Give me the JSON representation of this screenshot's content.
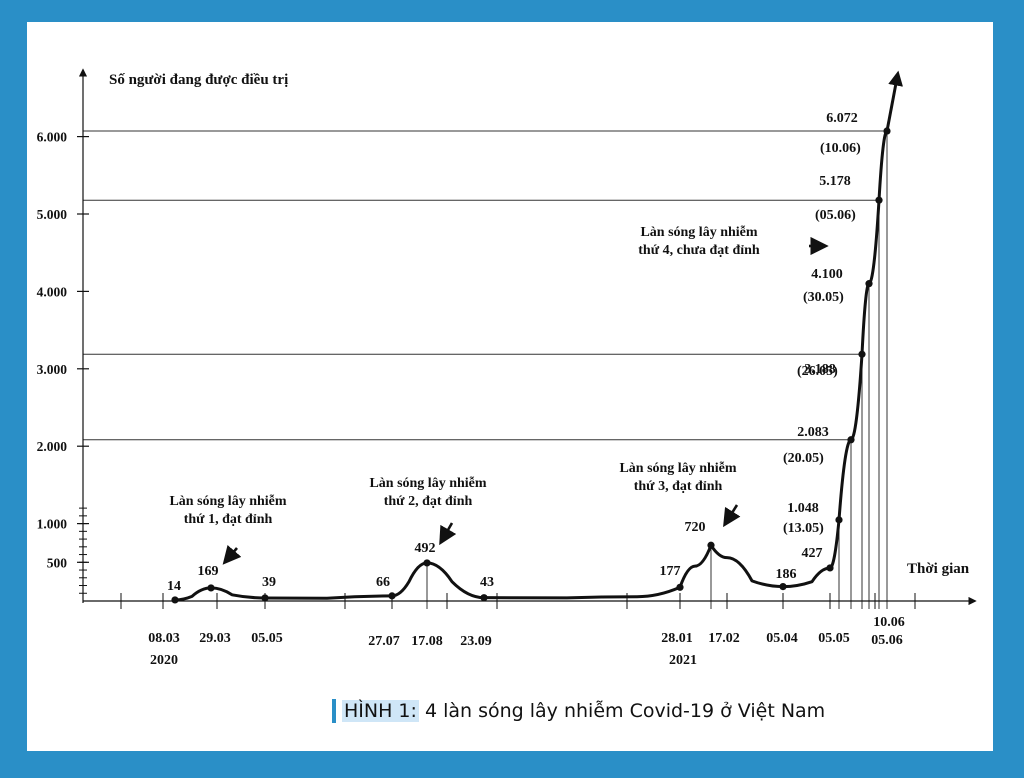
{
  "chart_data": {
    "type": "line",
    "title": "",
    "xlabel": "Thời gian",
    "ylabel": "Số người đang được điều trị",
    "yticks": [
      "500",
      "1.000",
      "2.000",
      "3.000",
      "4.000",
      "5.000",
      "6.000"
    ],
    "ytick_values": [
      500,
      1000,
      2000,
      3000,
      4000,
      5000,
      6000
    ],
    "years": [
      {
        "label": "2020",
        "under": "08.03"
      },
      {
        "label": "2021",
        "under": "28.01"
      }
    ],
    "series": [
      {
        "points": [
          {
            "date": "2020-03-08",
            "date_label": "08.03",
            "value": 14,
            "value_label": "14"
          },
          {
            "date": "2020-03-29",
            "date_label": "29.03",
            "value": 169,
            "value_label": "169"
          },
          {
            "date": "2020-05-05",
            "date_label": "05.05",
            "value": 39,
            "value_label": "39"
          },
          {
            "date": "2020-07-27",
            "date_label": "27.07",
            "value": 66,
            "value_label": "66"
          },
          {
            "date": "2020-08-17",
            "date_label": "17.08",
            "value": 492,
            "value_label": "492"
          },
          {
            "date": "2020-09-23",
            "date_label": "23.09",
            "value": 43,
            "value_label": "43"
          },
          {
            "date": "2021-01-28",
            "date_label": "28.01",
            "value": 177,
            "value_label": "177"
          },
          {
            "date": "2021-02-17",
            "date_label": "17.02",
            "value": 720,
            "value_label": "720"
          },
          {
            "date": "2021-04-05",
            "date_label": "05.04",
            "value": 186,
            "value_label": "186"
          },
          {
            "date": "2021-05-05",
            "date_label": "05.05",
            "value": 427,
            "value_label": "427"
          },
          {
            "date": "2021-05-13",
            "date_label": "(13.05)",
            "value": 1048,
            "value_label": "1.048"
          },
          {
            "date": "2021-05-20",
            "date_label": "(20.05)",
            "value": 2083,
            "value_label": "2.083"
          },
          {
            "date": "2021-05-26",
            "date_label": "(26.05)",
            "value": 3188,
            "value_label": "3.188"
          },
          {
            "date": "2021-05-30",
            "date_label": "(30.05)",
            "value": 4100,
            "value_label": "4.100"
          },
          {
            "date": "2021-06-05",
            "date_label": "(05.06)",
            "value": 5178,
            "value_label": "5.178"
          },
          {
            "date": "2021-06-10",
            "date_label": "(10.06)",
            "value": 6072,
            "value_label": "6.072"
          }
        ]
      }
    ],
    "reference_lines": [
      2083,
      3188,
      5178,
      6072
    ],
    "annotations": [
      {
        "lines": [
          "Làn sóng lây nhiễm",
          "thứ 1, đạt đỉnh"
        ]
      },
      {
        "lines": [
          "Làn sóng lây nhiễm",
          "thứ 2, đạt đỉnh"
        ]
      },
      {
        "lines": [
          "Làn sóng lây nhiễm",
          "thứ 3, đạt đỉnh"
        ]
      },
      {
        "lines": [
          "Làn sóng lây nhiễm",
          "thứ 4, chưa đạt đỉnh"
        ]
      }
    ],
    "grid": false,
    "legend": "none"
  },
  "caption": {
    "label": "HÌNH 1:",
    "text": " 4 làn sóng lây nhiễm Covid-19 ở Việt Nam"
  }
}
